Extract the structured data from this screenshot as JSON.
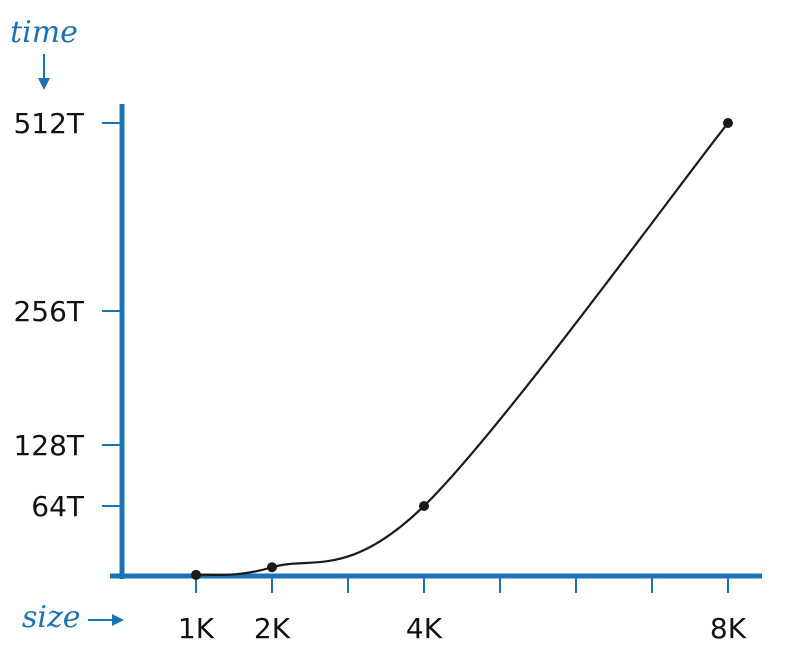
{
  "chart_data": {
    "type": "line",
    "ylabel": "time",
    "xlabel": "size",
    "x": [
      1000,
      2000,
      4000,
      8000
    ],
    "x_tick_values": [
      1000,
      2000,
      3000,
      4000,
      5000,
      6000,
      7000,
      8000
    ],
    "x_tick_labels": [
      {
        "value": 1000,
        "label": "1K"
      },
      {
        "value": 2000,
        "label": "2K"
      },
      {
        "value": 4000,
        "label": "4K"
      },
      {
        "value": 8000,
        "label": "8K"
      }
    ],
    "y_tick_labels": [
      {
        "value": 64,
        "label": "64T"
      },
      {
        "value": 128,
        "label": "128T"
      },
      {
        "value": 256,
        "label": "256T"
      },
      {
        "value": 512,
        "label": "512T"
      }
    ],
    "series": [
      {
        "values": [
          1,
          8,
          64,
          512
        ]
      }
    ],
    "xlim": [
      0,
      8400
    ],
    "ylim": [
      0,
      512
    ],
    "grid": false,
    "colors": {
      "axis": "#1a73b8",
      "line": "#1a1a1a",
      "text": "#111111"
    }
  }
}
